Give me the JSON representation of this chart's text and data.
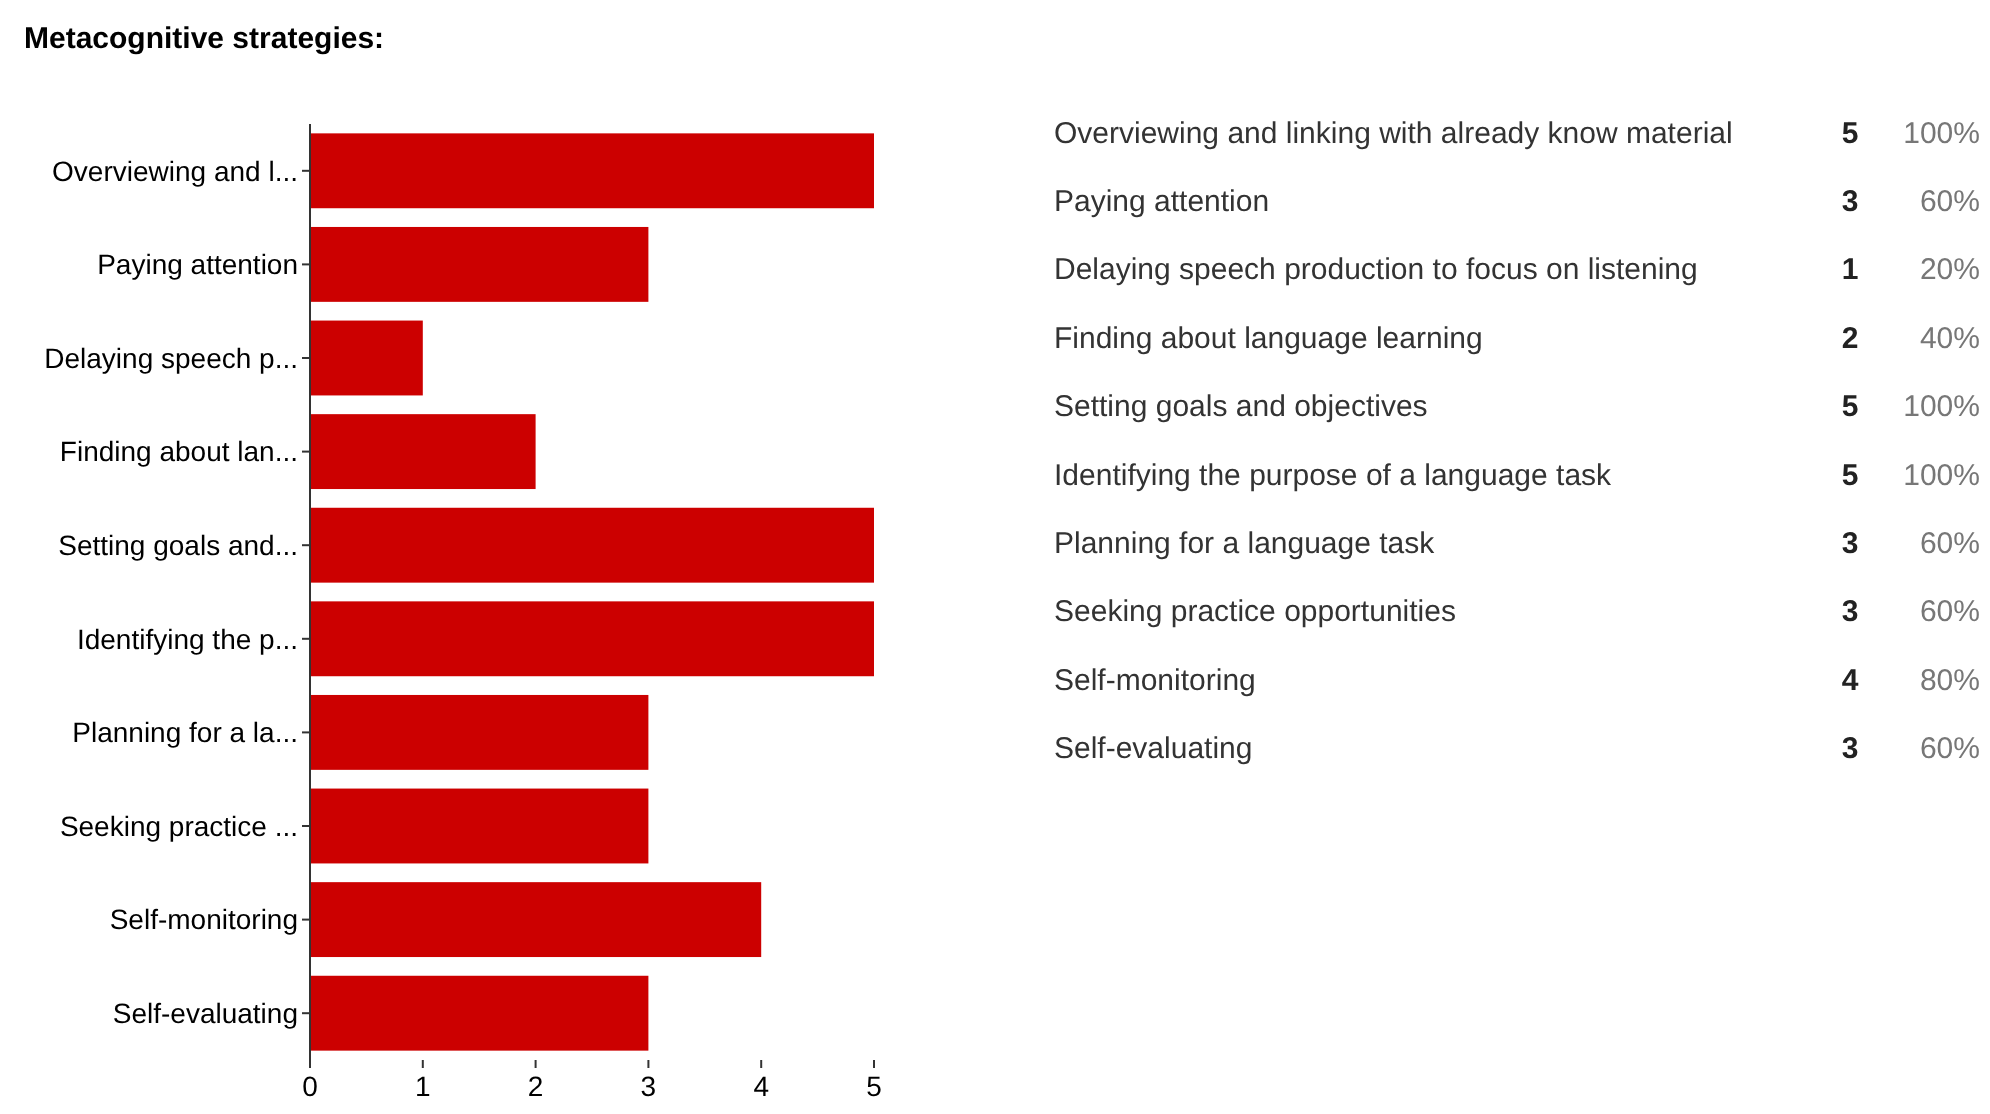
{
  "chart_data": [
    {
      "type": "bar",
      "title": "Metacognitive strategies:",
      "orientation": "horizontal",
      "categories": [
        "Overviewing and l...",
        "Paying attention",
        "Delaying speech p...",
        "Finding about lan...",
        "Setting goals and...",
        "Identifying the p...",
        "Planning for a la...",
        "Seeking practice ...",
        "Self-monitoring",
        "Self-evaluating"
      ],
      "values": [
        5,
        3,
        1,
        2,
        5,
        5,
        3,
        3,
        4,
        3
      ],
      "color": "#cc0000",
      "xlim": [
        0,
        5
      ],
      "xticks": [
        0,
        1,
        2,
        3,
        4,
        5
      ],
      "grid": false
    },
    {
      "type": "other",
      "categories": [
        "Overviewing and linking with already know material",
        "Paying attention",
        "Delaying speech production to focus on listening",
        "Finding about language learning",
        "Setting goals and objectives",
        "Identifying the purpose of a language task",
        "Planning for a language task",
        "Seeking practice opportunities",
        "Self-monitoring",
        "Self-evaluating"
      ],
      "data_labels": true,
      "series": [
        {
          "values": [
            5,
            3,
            1,
            2,
            5,
            5,
            3,
            3,
            4,
            3
          ]
        },
        {
          "values": [
            100,
            60,
            20,
            40,
            100,
            100,
            60,
            60,
            80,
            60
          ],
          "value_labels": [
            "100%",
            "60%",
            "20%",
            "40%",
            "100%",
            "100%",
            "60%",
            "60%",
            "80%",
            "60%"
          ]
        }
      ]
    }
  ]
}
